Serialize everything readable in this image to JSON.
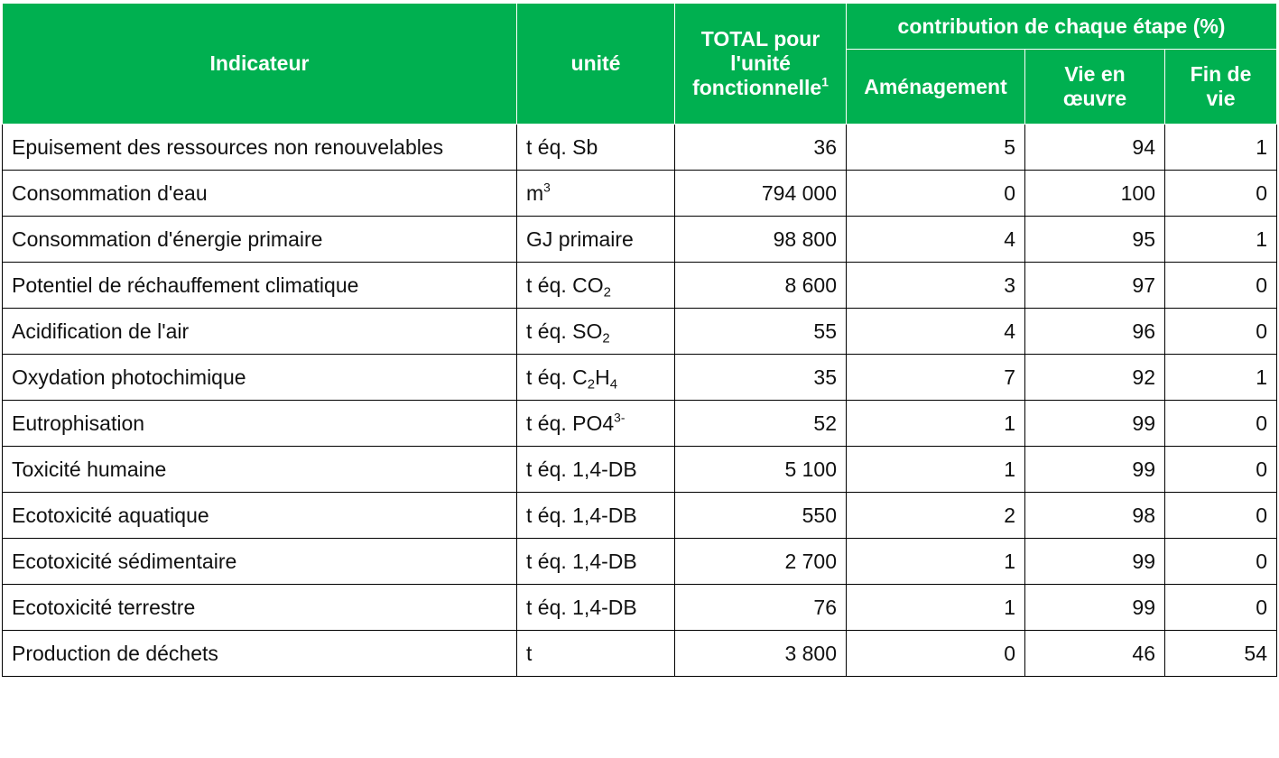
{
  "header": {
    "indicator": "Indicateur",
    "unit": "unité",
    "total_label": "TOTAL pour l'unité fonctionnelle",
    "total_footnote": "1",
    "group": "contribution de chaque étape (%)",
    "stage1": "Aménagement",
    "stage2": "Vie en œuvre",
    "stage3": "Fin de vie"
  },
  "rows": [
    {
      "indicator": "Epuisement des ressources non renouvelables",
      "unit": {
        "base": "t éq. Sb",
        "parts": []
      },
      "total": "36",
      "am": "5",
      "vie": "94",
      "fin": "1"
    },
    {
      "indicator": "Consommation d'eau",
      "unit": {
        "base": "m",
        "parts": [
          {
            "t": "sup",
            "v": "3"
          }
        ]
      },
      "total": "794 000",
      "am": "0",
      "vie": "100",
      "fin": "0"
    },
    {
      "indicator": "Consommation d'énergie primaire",
      "unit": {
        "base": "GJ primaire",
        "parts": []
      },
      "total": "98 800",
      "am": "4",
      "vie": "95",
      "fin": "1"
    },
    {
      "indicator": "Potentiel de réchauffement climatique",
      "unit": {
        "base": "t éq. CO",
        "parts": [
          {
            "t": "sub",
            "v": "2"
          }
        ]
      },
      "total": "8 600",
      "am": "3",
      "vie": "97",
      "fin": "0"
    },
    {
      "indicator": "Acidification de l'air",
      "unit": {
        "base": "t éq. SO",
        "parts": [
          {
            "t": "sub",
            "v": "2"
          }
        ]
      },
      "total": "55",
      "am": "4",
      "vie": "96",
      "fin": "0"
    },
    {
      "indicator": "Oxydation photochimique",
      "unit": {
        "base": "t éq. C",
        "parts": [
          {
            "t": "sub",
            "v": "2"
          },
          {
            "t": "txt",
            "v": "H"
          },
          {
            "t": "sub",
            "v": "4"
          }
        ]
      },
      "total": "35",
      "am": "7",
      "vie": "92",
      "fin": "1"
    },
    {
      "indicator": "Eutrophisation",
      "unit": {
        "base": "t éq. PO4",
        "parts": [
          {
            "t": "sup",
            "v": "3-"
          }
        ]
      },
      "total": "52",
      "am": "1",
      "vie": "99",
      "fin": "0"
    },
    {
      "indicator": "Toxicité humaine",
      "unit": {
        "base": "t éq. 1,4-DB",
        "parts": []
      },
      "total": "5 100",
      "am": "1",
      "vie": "99",
      "fin": "0"
    },
    {
      "indicator": "Ecotoxicité aquatique",
      "unit": {
        "base": "t éq. 1,4-DB",
        "parts": []
      },
      "total": "550",
      "am": "2",
      "vie": "98",
      "fin": "0"
    },
    {
      "indicator": "Ecotoxicité sédimentaire",
      "unit": {
        "base": "t éq. 1,4-DB",
        "parts": []
      },
      "total": "2 700",
      "am": "1",
      "vie": "99",
      "fin": "0"
    },
    {
      "indicator": "Ecotoxicité terrestre",
      "unit": {
        "base": "t éq. 1,4-DB",
        "parts": []
      },
      "total": "76",
      "am": "1",
      "vie": "99",
      "fin": "0"
    },
    {
      "indicator": "Production de déchets",
      "unit": {
        "base": "t",
        "parts": []
      },
      "total": "3 800",
      "am": "0",
      "vie": "46",
      "fin": "54"
    }
  ]
}
